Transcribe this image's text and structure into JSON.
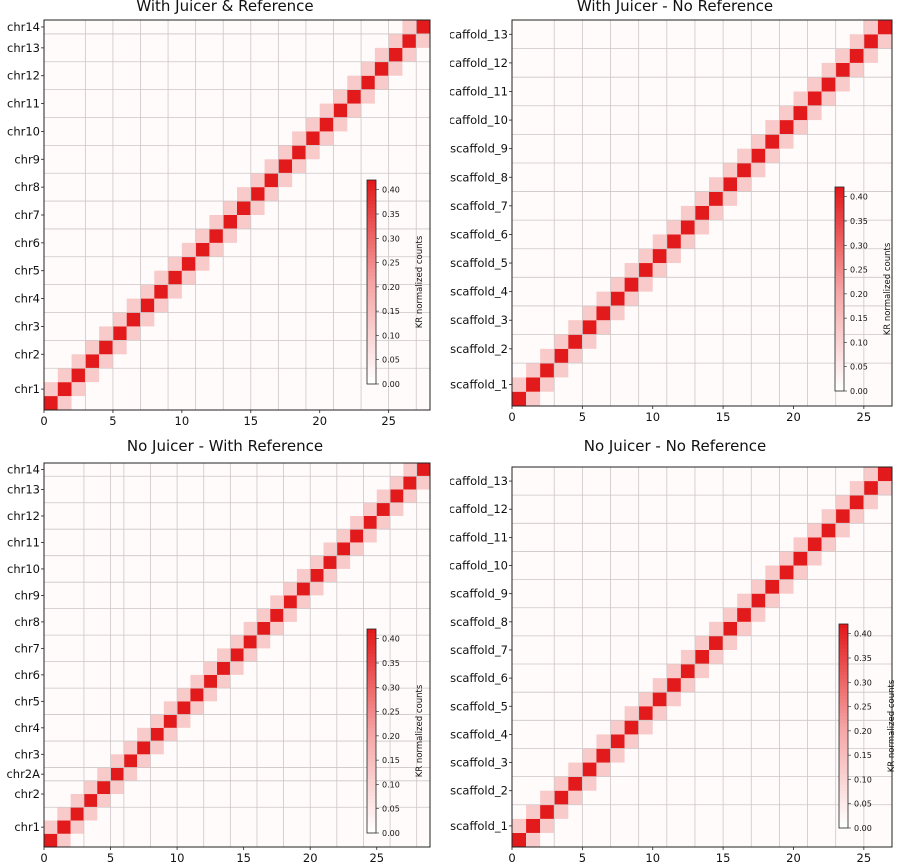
{
  "colors": {
    "max": "#e31a1c",
    "mid": "#f5a3a3",
    "bg": "#fdecec",
    "grid": "#cfc6c6"
  },
  "colorbar": {
    "label": "KR normalized counts",
    "ticks": [
      "0.00",
      "0.05",
      "0.10",
      "0.15",
      "0.20",
      "0.25",
      "0.30",
      "0.35",
      "0.40"
    ]
  },
  "chart_data": [
    {
      "type": "heatmap",
      "title": "With Juicer & Reference",
      "xlabel": "",
      "ylabel": "",
      "x_ticks": [
        "0",
        "5",
        "10",
        "15",
        "20",
        "25"
      ],
      "bins": 28,
      "scale": [
        0,
        0.42
      ],
      "diagonal_value": 0.42,
      "off_diagonal_value": 0.12,
      "background_value": 0.01,
      "block_labels": [
        "chr1",
        "chr2",
        "chr3",
        "chr4",
        "chr5",
        "chr6",
        "chr7",
        "chr8",
        "chr9",
        "chr10",
        "chr11",
        "chr12",
        "chr13",
        "chr14"
      ],
      "block_starts": [
        0,
        3,
        5,
        7,
        9,
        11,
        13,
        15,
        17,
        19,
        21,
        23,
        25,
        27
      ]
    },
    {
      "type": "heatmap",
      "title": "With Juicer - No Reference",
      "xlabel": "",
      "ylabel": "",
      "x_ticks": [
        "0",
        "5",
        "10",
        "15",
        "20",
        "25"
      ],
      "bins": 27,
      "scale": [
        0,
        0.42
      ],
      "diagonal_value": 0.42,
      "off_diagonal_value": 0.12,
      "background_value": 0.01,
      "block_labels": [
        "scaffold_1",
        "scaffold_2",
        "scaffold_3",
        "scaffold_4",
        "scaffold_5",
        "scaffold_6",
        "scaffold_7",
        "scaffold_8",
        "scaffold_9",
        "scaffold_10",
        "scaffold_11",
        "scaffold_12",
        "scaffold_13"
      ],
      "block_starts": [
        0,
        3,
        5,
        7,
        9,
        11,
        13,
        15,
        17,
        19,
        21,
        23,
        25
      ]
    },
    {
      "type": "heatmap",
      "title": "No Juicer - With Reference",
      "xlabel": "",
      "ylabel": "",
      "x_ticks": [
        "0",
        "5",
        "10",
        "15",
        "20",
        "25"
      ],
      "bins": 29,
      "scale": [
        0,
        0.42
      ],
      "diagonal_value": 0.42,
      "off_diagonal_value": 0.12,
      "background_value": 0.01,
      "block_labels": [
        "chr1",
        "chr2",
        "chr2A",
        "chr3",
        "chr4",
        "chr5",
        "chr6",
        "chr7",
        "chr8",
        "chr9",
        "chr10",
        "chr11",
        "chr12",
        "chr13",
        "chr14"
      ],
      "block_starts": [
        0,
        3,
        5,
        6,
        8,
        10,
        12,
        14,
        16,
        18,
        20,
        22,
        24,
        26,
        28
      ]
    },
    {
      "type": "heatmap",
      "title": "No Juicer - No Reference",
      "xlabel": "",
      "ylabel": "",
      "x_ticks": [
        "0",
        "5",
        "10",
        "15",
        "20",
        "25"
      ],
      "bins": 27,
      "scale": [
        0,
        0.42
      ],
      "diagonal_value": 0.42,
      "off_diagonal_value": 0.12,
      "background_value": 0.01,
      "block_labels": [
        "scaffold_1",
        "scaffold_2",
        "scaffold_3",
        "scaffold_4",
        "scaffold_5",
        "scaffold_6",
        "scaffold_7",
        "scaffold_8",
        "scaffold_9",
        "scaffold_10",
        "scaffold_11",
        "scaffold_12",
        "scaffold_13"
      ],
      "block_starts": [
        0,
        3,
        5,
        7,
        9,
        11,
        13,
        15,
        17,
        19,
        21,
        23,
        25
      ]
    }
  ]
}
